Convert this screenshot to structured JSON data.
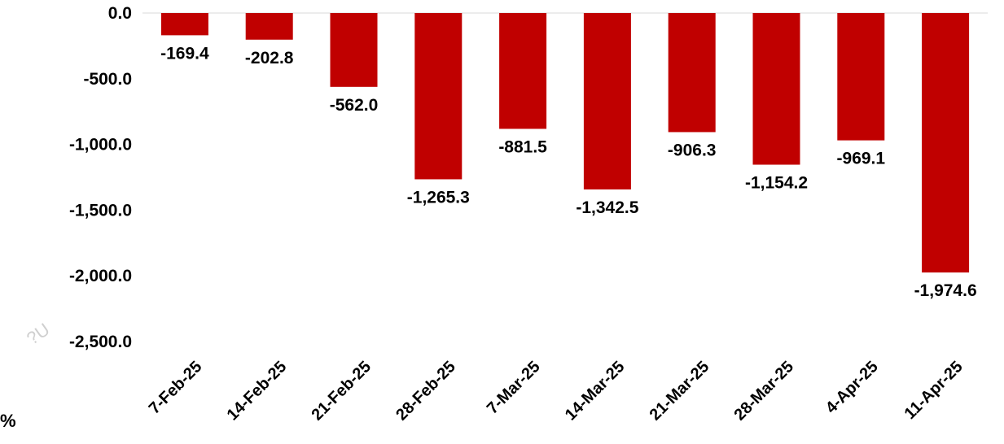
{
  "chart_data": {
    "type": "bar",
    "categories": [
      "7-Feb-25",
      "14-Feb-25",
      "21-Feb-25",
      "28-Feb-25",
      "7-Mar-25",
      "14-Mar-25",
      "21-Mar-25",
      "28-Mar-25",
      "4-Apr-25",
      "11-Apr-25"
    ],
    "values": [
      -169.4,
      -202.8,
      -562.0,
      -1265.3,
      -881.5,
      -1342.5,
      -906.3,
      -1154.2,
      -969.1,
      -1974.6
    ],
    "data_labels": [
      "-169.4",
      "-202.8",
      "-562.0",
      "-1,265.3",
      "-881.5",
      "-1,342.5",
      "-906.3",
      "-1,154.2",
      "-969.1",
      "-1,974.6"
    ],
    "y_ticks": [
      0,
      -500,
      -1000,
      -1500,
      -2000,
      -2500
    ],
    "y_tick_labels": [
      "0.0",
      "-500.0",
      "-1,000.0",
      "-1,500.0",
      "-2,000.0",
      "-2,500.0"
    ],
    "ylim": [
      -2500,
      0
    ],
    "grid": false,
    "legend": "none",
    "bar_color": "#C00000",
    "baseline_color": "#D9D9D9"
  },
  "stray_text": "%",
  "watermark_text": "?U"
}
